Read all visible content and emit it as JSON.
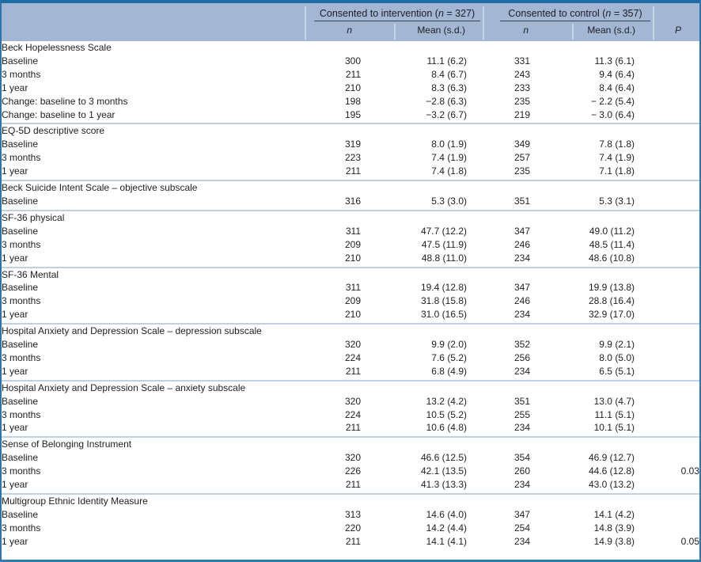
{
  "colors": {
    "header_bg": "#a3b7d4",
    "header_col_separator": "#c7d5e7",
    "section_separator": "#bed2e4",
    "border_top": "#1e6ba6",
    "border_bottom": "#2e7cb4",
    "border_side": "#2e75ad",
    "group_underline": "#39434f",
    "text": "#1c1f24"
  },
  "header": {
    "group1": {
      "pre": "Consented to intervention (",
      "n_italic": "n",
      "post": " = 327)"
    },
    "group2": {
      "pre": "Consented to control (",
      "n_italic": "n",
      "post": " = 357)"
    },
    "col_n1": "n",
    "col_mean1": "Mean (s.d.)",
    "col_n2": "n",
    "col_mean2": "Mean (s.d.)",
    "col_p": "P"
  },
  "sections": [
    {
      "title": "Beck Hopelessness Scale",
      "rows": [
        {
          "label": "Baseline",
          "n1": "300",
          "mean1": "11.1 (6.2)",
          "n2": "331",
          "mean2": "11.3 (6.1)",
          "p": ""
        },
        {
          "label": "3 months",
          "n1": "211",
          "mean1": "8.4 (6.7)",
          "n2": "243",
          "mean2": "9.4 (6.4)",
          "p": ""
        },
        {
          "label": "1 year",
          "n1": "210",
          "mean1": "8.3 (6.3)",
          "n2": "233",
          "mean2": "8.4 (6.4)",
          "p": ""
        },
        {
          "label": "Change: baseline to 3 months",
          "n1": "198",
          "mean1": "−2.8 (6.3)",
          "n2": "235",
          "mean2": "− 2.2 (5.4)",
          "p": ""
        },
        {
          "label": "Change: baseline to 1 year",
          "n1": "195",
          "mean1": "−3.2 (6.7)",
          "n2": "219",
          "mean2": "− 3.0 (6.4)",
          "p": ""
        }
      ]
    },
    {
      "title": "EQ-5D descriptive score",
      "rows": [
        {
          "label": "Baseline",
          "n1": "319",
          "mean1": "8.0 (1.9)",
          "n2": "349",
          "mean2": "7.8 (1.8)",
          "p": ""
        },
        {
          "label": "3 months",
          "n1": "223",
          "mean1": "7.4 (1.9)",
          "n2": "257",
          "mean2": "7.4 (1.9)",
          "p": ""
        },
        {
          "label": "1 year",
          "n1": "211",
          "mean1": "7.4 (1.8)",
          "n2": "235",
          "mean2": "7.1 (1.8)",
          "p": ""
        }
      ]
    },
    {
      "title": "Beck Suicide Intent Scale – objective subscale",
      "rows": [
        {
          "label": "Baseline",
          "n1": "316",
          "mean1": "5.3 (3.0)",
          "n2": "351",
          "mean2": "5.3 (3.1)",
          "p": ""
        }
      ]
    },
    {
      "title": "SF-36 physical",
      "rows": [
        {
          "label": "Baseline",
          "n1": "311",
          "mean1": "47.7 (12.2)",
          "n2": "347",
          "mean2": "49.0 (11.2)",
          "p": ""
        },
        {
          "label": "3 months",
          "n1": "209",
          "mean1": "47.5 (11.9)",
          "n2": "246",
          "mean2": "48.5 (11.4)",
          "p": ""
        },
        {
          "label": "1 year",
          "n1": "210",
          "mean1": "48.8 (11.0)",
          "n2": "234",
          "mean2": "48.6 (10.8)",
          "p": ""
        }
      ]
    },
    {
      "title": "SF-36 Mental",
      "rows": [
        {
          "label": "Baseline",
          "n1": "311",
          "mean1": "19.4 (12.8)",
          "n2": "347",
          "mean2": "19.9 (13.8)",
          "p": ""
        },
        {
          "label": "3 months",
          "n1": "209",
          "mean1": "31.8 (15.8)",
          "n2": "246",
          "mean2": "28.8 (16.4)",
          "p": ""
        },
        {
          "label": "1 year",
          "n1": "210",
          "mean1": "31.0 (16.5)",
          "n2": "234",
          "mean2": "32.9 (17.0)",
          "p": ""
        }
      ]
    },
    {
      "title": "Hospital Anxiety and Depression Scale – depression subscale",
      "rows": [
        {
          "label": "Baseline",
          "n1": "320",
          "mean1": "9.9 (2.0)",
          "n2": "352",
          "mean2": "9.9 (2.1)",
          "p": ""
        },
        {
          "label": "3 months",
          "n1": "224",
          "mean1": "7.6 (5.2)",
          "n2": "256",
          "mean2": "8.0 (5.0)",
          "p": ""
        },
        {
          "label": "1 year",
          "n1": "211",
          "mean1": "6.8 (4.9)",
          "n2": "234",
          "mean2": "6.5 (5.1)",
          "p": ""
        }
      ]
    },
    {
      "title": "Hospital Anxiety and Depression Scale – anxiety subscale",
      "rows": [
        {
          "label": "Baseline",
          "n1": "320",
          "mean1": "13.2 (4.2)",
          "n2": "351",
          "mean2": "13.0 (4.7)",
          "p": ""
        },
        {
          "label": "3 months",
          "n1": "224",
          "mean1": "10.5 (5.2)",
          "n2": "255",
          "mean2": "11.1 (5.1)",
          "p": ""
        },
        {
          "label": "1 year",
          "n1": "211",
          "mean1": "10.6 (4.8)",
          "n2": "234",
          "mean2": "10.1 (5.1)",
          "p": ""
        }
      ]
    },
    {
      "title": "Sense of Belonging Instrument",
      "rows": [
        {
          "label": "Baseline",
          "n1": "320",
          "mean1": "46.6 (12.5)",
          "n2": "354",
          "mean2": "46.9 (12.7)",
          "p": ""
        },
        {
          "label": "3 months",
          "n1": "226",
          "mean1": "42.1 (13.5)",
          "n2": "260",
          "mean2": "44.6 (12.8)",
          "p": "0.03"
        },
        {
          "label": "1 year",
          "n1": "211",
          "mean1": "41.3 (13.3)",
          "n2": "234",
          "mean2": "43.0 (13.2)",
          "p": ""
        }
      ]
    },
    {
      "title": "Multigroup Ethnic Identity Measure",
      "rows": [
        {
          "label": "Baseline",
          "n1": "313",
          "mean1": "14.6 (4.0)",
          "n2": "347",
          "mean2": "14.1 (4.2)",
          "p": ""
        },
        {
          "label": "3 months",
          "n1": "220",
          "mean1": "14.2 (4.4)",
          "n2": "254",
          "mean2": "14.8 (3.9)",
          "p": ""
        },
        {
          "label": "1 year",
          "n1": "211",
          "mean1": "14.1 (4.1)",
          "n2": "234",
          "mean2": "14.9 (3.8)",
          "p": "0.05"
        }
      ]
    }
  ]
}
